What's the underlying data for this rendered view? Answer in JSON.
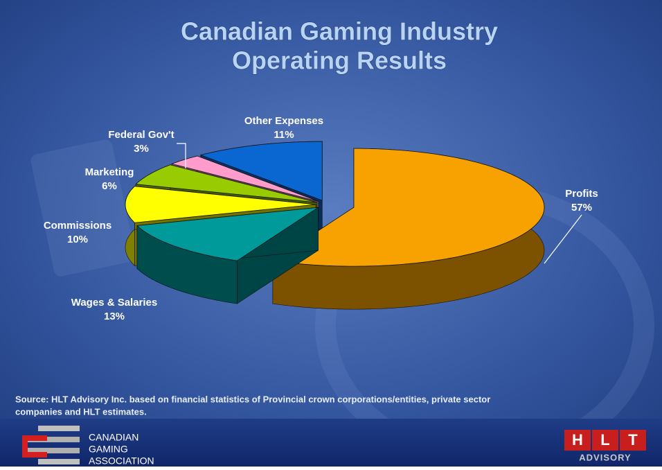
{
  "chart_data": {
    "type": "pie3d",
    "title": [
      "Canadian Gaming Industry",
      "Operating Results"
    ],
    "categories": [
      "Profits",
      "Wages & Salaries",
      "Commissions",
      "Marketing",
      "Federal Gov't",
      "Other Expenses"
    ],
    "values": [
      57,
      13,
      10,
      6,
      3,
      11
    ],
    "value_labels": [
      "57%",
      "13%",
      "10%",
      "6%",
      "3%",
      "11%"
    ],
    "colors": [
      "#f7a200",
      "#009a9a",
      "#ffff00",
      "#99cc00",
      "#ff9ccc",
      "#0a66d0"
    ]
  },
  "source": [
    "Source: HLT Advisory Inc. based on financial statistics of Provincial crown corporations/entities, private sector",
    "companies and HLT estimates."
  ],
  "footer": {
    "association": [
      "CANADIAN",
      "GAMING",
      "ASSOCIATION"
    ],
    "hlt_letters": [
      "H",
      "L",
      "T"
    ],
    "hlt_word": "ADVISORY"
  }
}
